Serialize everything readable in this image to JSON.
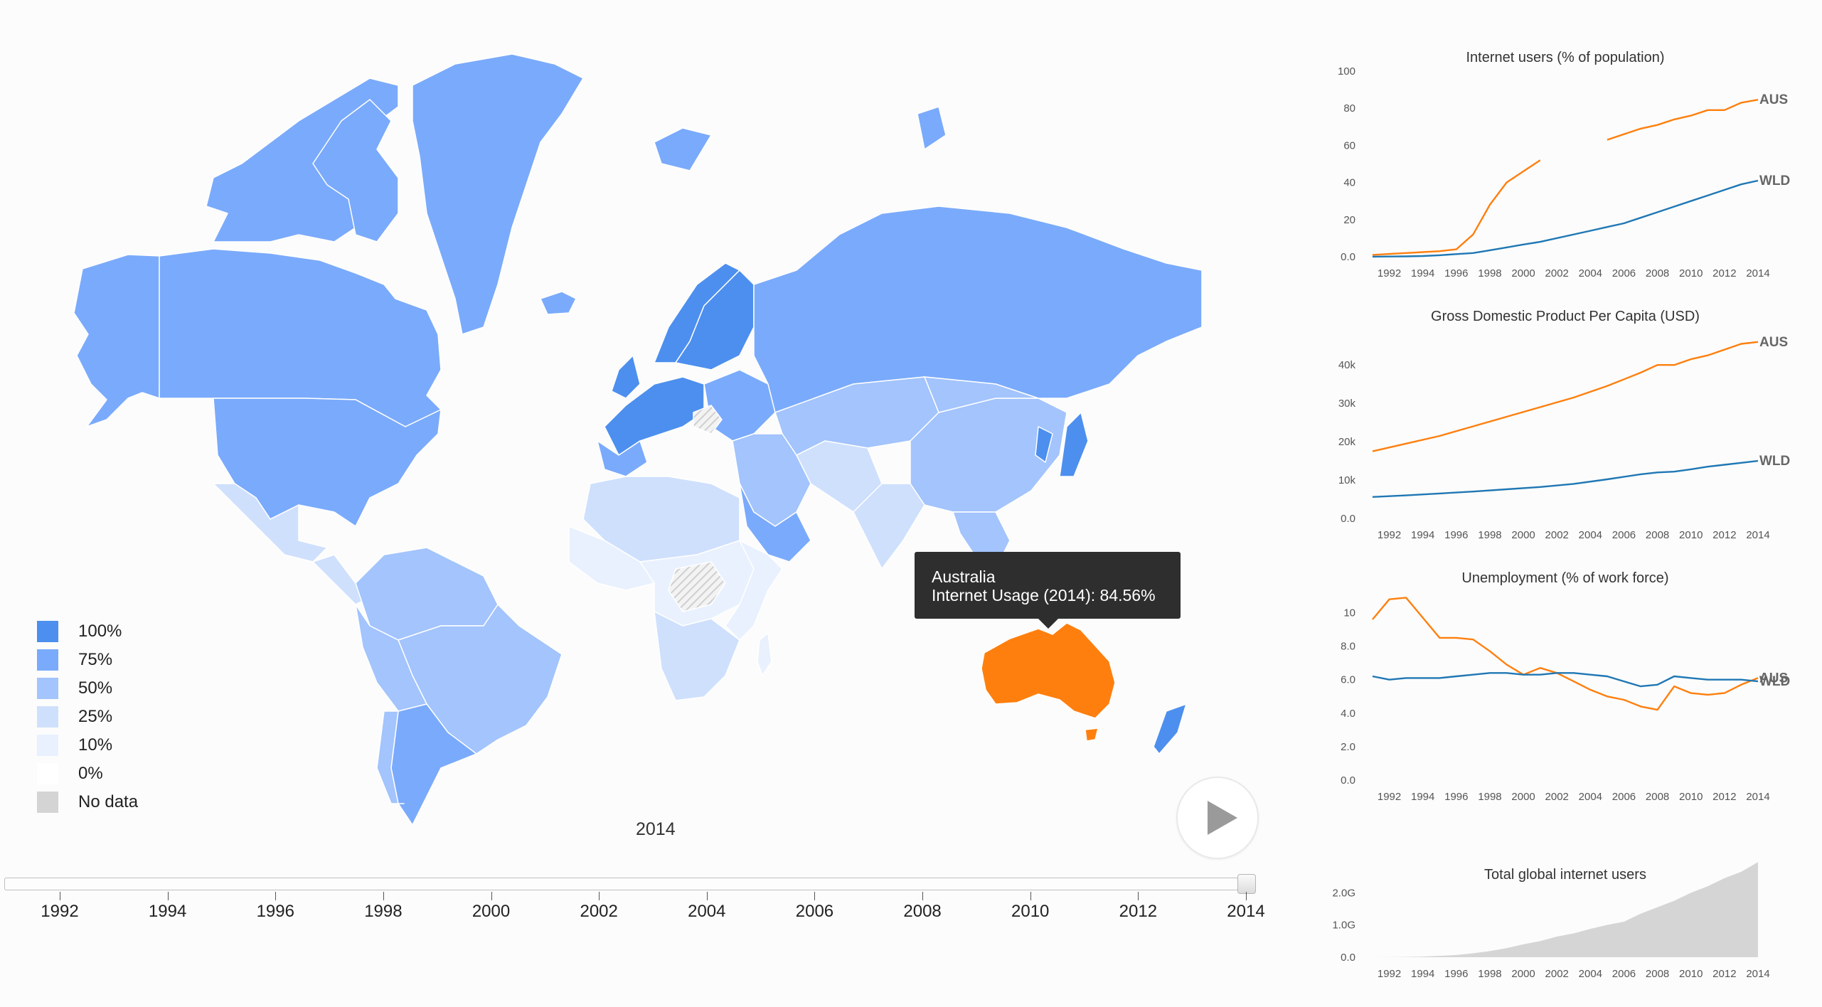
{
  "map": {
    "year": "2014",
    "legend": [
      {
        "label": "100%",
        "color": "#4d8fee"
      },
      {
        "label": "75%",
        "color": "#7aaafb"
      },
      {
        "label": "50%",
        "color": "#a3c4fc"
      },
      {
        "label": "25%",
        "color": "#cfe0fd"
      },
      {
        "label": "10%",
        "color": "#e9f1fe"
      },
      {
        "label": "0%",
        "color": "#ffffff"
      },
      {
        "label": "No data",
        "color": "#d4d4d4"
      }
    ],
    "highlight_color": "#ff7f0e",
    "tooltip": {
      "country": "Australia",
      "text": "Internet Usage (2014): 84.56%"
    },
    "play_icon": "play-icon"
  },
  "timeline": {
    "years": [
      "1992",
      "1994",
      "1996",
      "1998",
      "2000",
      "2002",
      "2004",
      "2006",
      "2008",
      "2010",
      "2012",
      "2014"
    ],
    "selected": 2014,
    "min": 1991,
    "max": 2014
  },
  "chart_data": [
    {
      "type": "line",
      "title": "Internet users (% of population)",
      "x": [
        1991,
        1992,
        1993,
        1994,
        1995,
        1996,
        1997,
        1998,
        1999,
        2000,
        2001,
        2004,
        2005,
        2006,
        2007,
        2008,
        2009,
        2010,
        2011,
        2012,
        2013,
        2014
      ],
      "series": [
        {
          "name": "AUS",
          "color": "#ff7f0e",
          "values": [
            1.0,
            1.5,
            2.0,
            2.5,
            3.0,
            4.0,
            12,
            28,
            40,
            46,
            52,
            null,
            63,
            66,
            69,
            71,
            74,
            76,
            79,
            79,
            83,
            84.6
          ]
        },
        {
          "name": "WLD",
          "color": "#1f77b4",
          "values": [
            0.05,
            0.1,
            0.2,
            0.4,
            0.8,
            1.4,
            2.0,
            3.5,
            5.0,
            6.6,
            8.0,
            14,
            16,
            18,
            21,
            24,
            27,
            30,
            33,
            36,
            39,
            41
          ]
        }
      ],
      "y_ticks": [
        "0.0",
        "20",
        "40",
        "60",
        "80",
        "100"
      ],
      "ylim": [
        0,
        100
      ],
      "x_ticks": [
        "1992",
        "1994",
        "1996",
        "1998",
        "2000",
        "2002",
        "2004",
        "2006",
        "2008",
        "2010",
        "2012",
        "2014"
      ]
    },
    {
      "type": "line",
      "title": "Gross Domestic Product Per Capita (USD)",
      "x": [
        1991,
        1993,
        1995,
        1997,
        1999,
        2001,
        2003,
        2005,
        2007,
        2008,
        2009,
        2010,
        2011,
        2012,
        2013,
        2014
      ],
      "series": [
        {
          "name": "AUS",
          "color": "#ff7f0e",
          "values": [
            17500,
            19500,
            21500,
            24000,
            26500,
            29000,
            31500,
            34500,
            38000,
            40000,
            40000,
            41500,
            42500,
            44000,
            45500,
            46000
          ]
        },
        {
          "name": "WLD",
          "color": "#1f77b4",
          "values": [
            5600,
            6000,
            6500,
            7000,
            7600,
            8200,
            9000,
            10200,
            11500,
            12000,
            12200,
            12800,
            13500,
            14000,
            14500,
            15000
          ]
        }
      ],
      "y_ticks": [
        "0.0",
        "10k",
        "20k",
        "30k",
        "40k"
      ],
      "ylim": [
        0,
        48000
      ],
      "x_ticks": [
        "1992",
        "1994",
        "1996",
        "1998",
        "2000",
        "2002",
        "2004",
        "2006",
        "2008",
        "2010",
        "2012",
        "2014"
      ]
    },
    {
      "type": "line",
      "title": "Unemployment (% of work force)",
      "x": [
        1991,
        1992,
        1993,
        1994,
        1995,
        1996,
        1997,
        1998,
        1999,
        2000,
        2001,
        2002,
        2003,
        2004,
        2005,
        2006,
        2007,
        2008,
        2009,
        2010,
        2011,
        2012,
        2013,
        2014
      ],
      "series": [
        {
          "name": "AUS",
          "color": "#ff7f0e",
          "values": [
            9.6,
            10.8,
            10.9,
            9.7,
            8.5,
            8.5,
            8.4,
            7.7,
            6.9,
            6.3,
            6.7,
            6.4,
            5.9,
            5.4,
            5.0,
            4.8,
            4.4,
            4.2,
            5.6,
            5.2,
            5.1,
            5.2,
            5.7,
            6.1
          ]
        },
        {
          "name": "WLD",
          "color": "#1f77b4",
          "values": [
            6.2,
            6.0,
            6.1,
            6.1,
            6.1,
            6.2,
            6.3,
            6.4,
            6.4,
            6.3,
            6.3,
            6.4,
            6.4,
            6.3,
            6.2,
            5.9,
            5.6,
            5.7,
            6.2,
            6.1,
            6.0,
            6.0,
            6.0,
            5.9
          ]
        }
      ],
      "y_ticks": [
        "0.0",
        "2.0",
        "4.0",
        "6.0",
        "8.0",
        "10"
      ],
      "ylim": [
        0,
        11
      ],
      "x_ticks": [
        "1992",
        "1994",
        "1996",
        "1998",
        "2000",
        "2002",
        "2004",
        "2006",
        "2008",
        "2010",
        "2012",
        "2014"
      ],
      "end_labels": [
        "WLD",
        "AUS"
      ]
    },
    {
      "type": "area",
      "title": "Total global internet users",
      "x": [
        1991,
        1992,
        1993,
        1994,
        1995,
        1996,
        1997,
        1998,
        1999,
        2000,
        2001,
        2002,
        2003,
        2004,
        2005,
        2006,
        2007,
        2008,
        2009,
        2010,
        2011,
        2012,
        2013,
        2014
      ],
      "values": [
        0.0,
        0.004,
        0.009,
        0.02,
        0.04,
        0.07,
        0.12,
        0.19,
        0.28,
        0.4,
        0.5,
        0.64,
        0.74,
        0.88,
        1.0,
        1.1,
        1.35,
        1.55,
        1.75,
        2.0,
        2.2,
        2.45,
        2.65,
        2.95
      ],
      "color": "#d5d5d5",
      "y_ticks": [
        "0.0",
        "1.0G",
        "2.0G"
      ],
      "ylim": [
        0,
        3.0
      ],
      "x_ticks": [
        "1992",
        "1994",
        "1996",
        "1998",
        "2000",
        "2002",
        "2004",
        "2006",
        "2008",
        "2010",
        "2012",
        "2014"
      ]
    }
  ]
}
